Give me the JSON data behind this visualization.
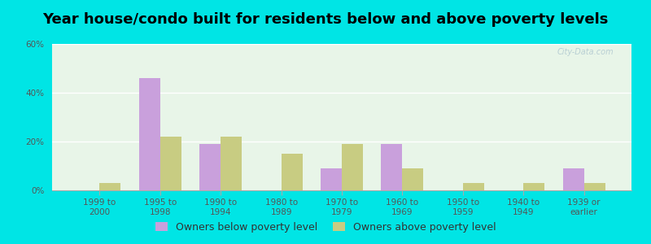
{
  "title": "Year house/condo built for residents below and above poverty levels",
  "categories": [
    "1999 to\n2000",
    "1995 to\n1998",
    "1990 to\n1994",
    "1980 to\n1989",
    "1970 to\n1979",
    "1960 to\n1969",
    "1950 to\n1959",
    "1940 to\n1949",
    "1939 or\nearlier"
  ],
  "below_poverty": [
    0,
    46,
    19,
    0,
    9,
    19,
    0,
    0,
    9
  ],
  "above_poverty": [
    3,
    22,
    22,
    15,
    19,
    9,
    3,
    3,
    3
  ],
  "below_color": "#c9a0dc",
  "above_color": "#c8cc82",
  "background_color": "#00e5e5",
  "plot_bg_color": "#e8f5e8",
  "ylim": [
    0,
    60
  ],
  "yticks": [
    0,
    20,
    40,
    60
  ],
  "ytick_labels": [
    "0%",
    "20%",
    "40%",
    "60%"
  ],
  "bar_width": 0.35,
  "legend_below_label": "Owners below poverty level",
  "legend_above_label": "Owners above poverty level",
  "title_fontsize": 13,
  "tick_fontsize": 7.5,
  "legend_fontsize": 9,
  "watermark": "City-Data.com"
}
